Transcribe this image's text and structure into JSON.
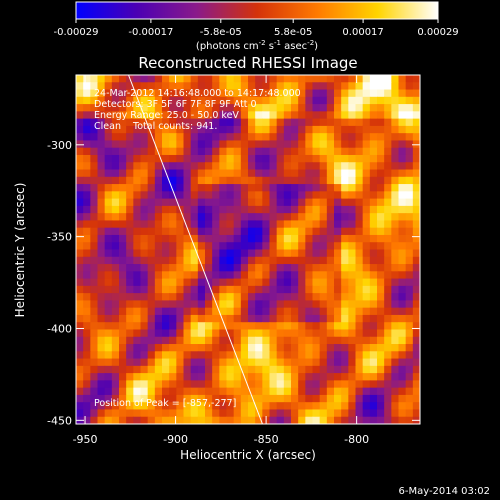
{
  "colorbar": {
    "tick_labels": [
      "-0.00029",
      "-0.00017",
      "-5.8e-05",
      "5.8e-05",
      "0.00017",
      "0.00029"
    ],
    "tick_values": [
      -0.00029,
      -0.00017,
      -5.8e-05,
      5.8e-05,
      0.00017,
      0.00029
    ],
    "range": [
      -0.00029,
      0.00029
    ],
    "unit_prefix": "(photons cm",
    "unit_exp1": "-2",
    "unit_mid": " s",
    "unit_exp2": "-1",
    "unit_mid2": " asec",
    "unit_exp3": "-2",
    "unit_suffix": ")",
    "colors": [
      "#0000ff",
      "#4b00b4",
      "#8a1a8a",
      "#d4320a",
      "#ff7a00",
      "#ffd400",
      "#ffffff"
    ]
  },
  "chart_data": {
    "type": "heatmap",
    "title": "Reconstructed RHESSI Image",
    "xlabel": "Heliocentric X (arcsec)",
    "ylabel": "Heliocentric Y (arcsec)",
    "xlim": [
      -955,
      -765
    ],
    "ylim": [
      -452,
      -262
    ],
    "x_ticks": [
      -950,
      -900,
      -850,
      -800
    ],
    "x_tick_labels": [
      "-950",
      "-900",
      "-850",
      "-800"
    ],
    "y_ticks": [
      -300,
      -350,
      -400,
      -450
    ],
    "y_tick_labels": [
      "-300",
      "-350",
      "-400",
      "-450"
    ],
    "limb_line": [
      [
        -926,
        -262
      ],
      [
        -852,
        -452
      ]
    ],
    "peak": [
      -857,
      -277
    ],
    "annotations": [
      "24-Mar-2012 14:16:48.000 to 14:17:48.000",
      "Detectors: 3F 5F 6F 7F 8F 9F Att 0",
      "Energy Range: 25.0 - 50.0 keV",
      "Clean    Total counts: 941.",
      "Position of Peak = [-857,-277]"
    ]
  },
  "footer": {
    "date": "6-May-2014 03:02"
  }
}
